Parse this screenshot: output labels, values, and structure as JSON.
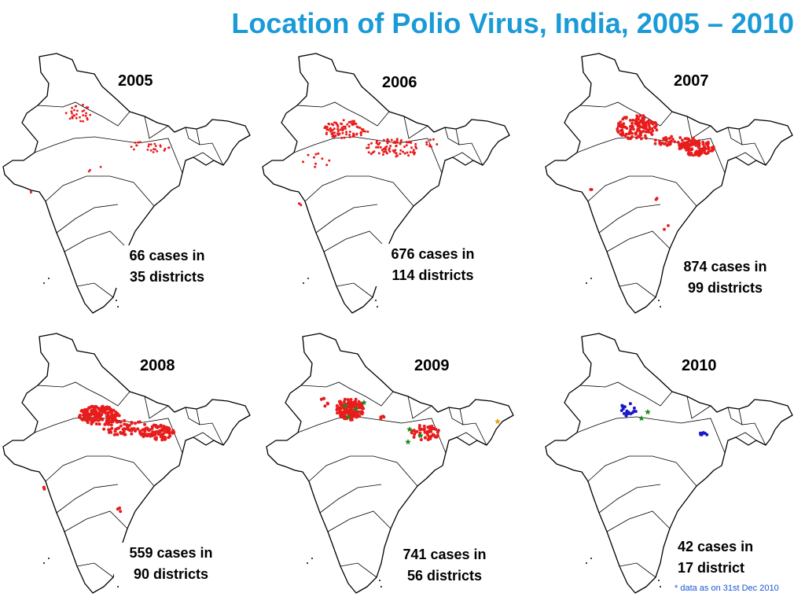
{
  "title": "Location of Polio Virus, India, 2005 – 2010",
  "footnote": "* data as on 31st Dec 2010",
  "colors": {
    "title": "#1a9ad6",
    "footnote": "#1a55d6",
    "type1_marker": "#e81c1c",
    "type3_marker": "#1c8c1c",
    "mixed_marker": "#e8a010",
    "wild_marker_2010": "#1a1ac8"
  },
  "panels": [
    {
      "year": "2005",
      "cases_line1": "66 cases in",
      "cases_line2": "35 districts",
      "cases": 66,
      "districts": 35
    },
    {
      "year": "2006",
      "cases_line1": "676 cases in",
      "cases_line2": "114 districts",
      "cases": 676,
      "districts": 114
    },
    {
      "year": "2007",
      "cases_line1": "874 cases in",
      "cases_line2": "99 districts",
      "cases": 874,
      "districts": 99
    },
    {
      "year": "2008",
      "cases_line1": "559 cases in",
      "cases_line2": "90 districts",
      "cases": 559,
      "districts": 90
    },
    {
      "year": "2009",
      "cases_line1": "741 cases in",
      "cases_line2": "56 districts",
      "cases": 741,
      "districts": 56
    },
    {
      "year": "2010",
      "cases_line1": "42 cases in",
      "cases_line2": "17 district",
      "cases": 42,
      "districts": 17
    }
  ]
}
